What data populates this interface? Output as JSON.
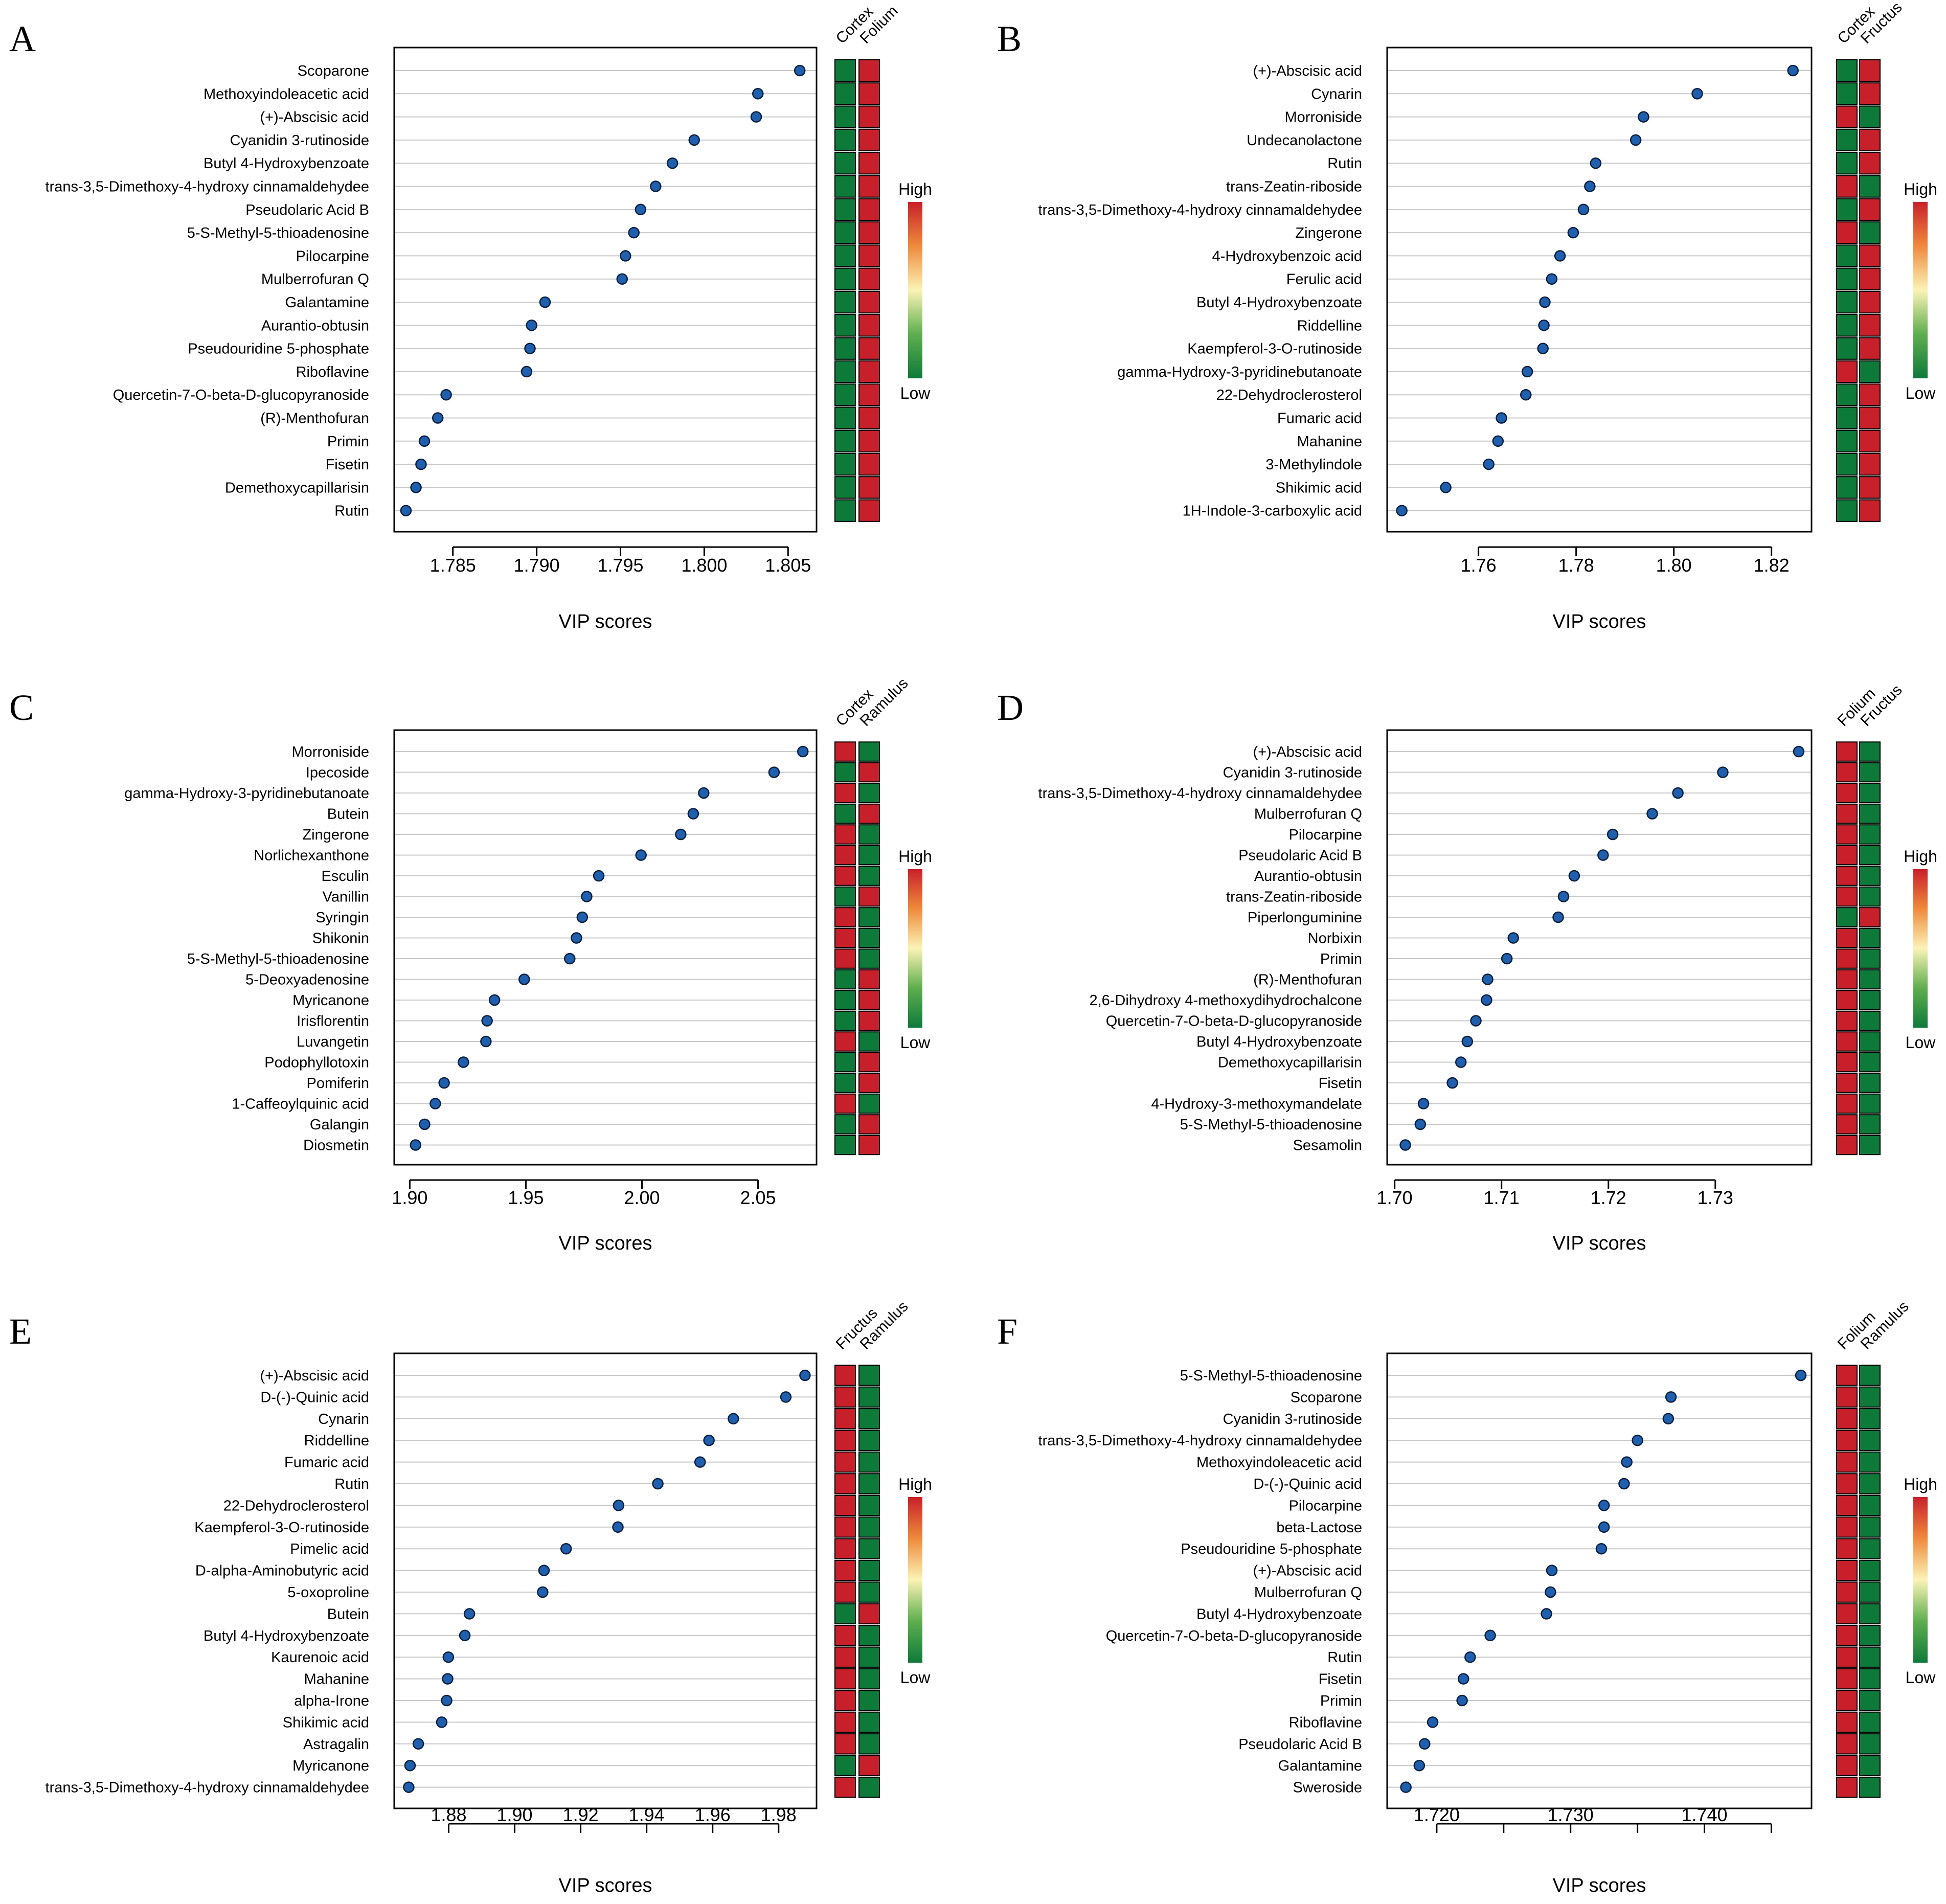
{
  "xlabel": "VIP scores",
  "colors": {
    "point_fill": "#1f5fae",
    "point_stroke": "#0b1f3d",
    "high": "#c8202a",
    "low": "#0e7a3a",
    "gridline": "#c8c8c8",
    "frame": "#000000"
  },
  "legend": {
    "high": "High",
    "low": "Low"
  },
  "chart_data": [
    {
      "letter": "A",
      "type": "scatter",
      "title": "A",
      "xlabel": "VIP scores",
      "xlim": [
        1.7815,
        1.8067
      ],
      "xticks": [
        1.785,
        1.79,
        1.795,
        1.8,
        1.805
      ],
      "tick_labels": [
        "1.785",
        "1.790",
        "1.795",
        "1.800",
        "1.805"
      ],
      "groups": [
        "Cortex",
        "Folium"
      ],
      "compounds": [
        "Scoparone",
        "Methoxyindoleacetic acid",
        "(+)-Abscisic acid",
        "Cyanidin 3-rutinoside",
        "Butyl 4-Hydroxybenzoate",
        "trans-3,5-Dimethoxy-4-hydroxy cinnamaldehydee",
        "Pseudolaric Acid B",
        "5-S-Methyl-5-thioadenosine",
        "Pilocarpine",
        "Mulberrofuran Q",
        "Galantamine",
        "Aurantio-obtusin",
        "Pseudouridine 5-phosphate",
        "Riboflavine",
        "Quercetin-7-O-beta-D-glucopyranoside",
        "(R)-Menthofuran",
        "Primin",
        "Fisetin",
        "Demethoxycapillarisin",
        "Rutin"
      ],
      "values": [
        1.8057,
        1.8032,
        1.8031,
        1.7994,
        1.7981,
        1.7971,
        1.7962,
        1.7958,
        1.7953,
        1.7951,
        1.7905,
        1.7897,
        1.7896,
        1.7894,
        1.7846,
        1.7841,
        1.7833,
        1.7831,
        1.7828,
        1.7822
      ],
      "heat": [
        [
          "low",
          "high"
        ],
        [
          "low",
          "high"
        ],
        [
          "low",
          "high"
        ],
        [
          "low",
          "high"
        ],
        [
          "low",
          "high"
        ],
        [
          "low",
          "high"
        ],
        [
          "low",
          "high"
        ],
        [
          "low",
          "high"
        ],
        [
          "low",
          "high"
        ],
        [
          "low",
          "high"
        ],
        [
          "low",
          "high"
        ],
        [
          "low",
          "high"
        ],
        [
          "low",
          "high"
        ],
        [
          "low",
          "high"
        ],
        [
          "low",
          "high"
        ],
        [
          "low",
          "high"
        ],
        [
          "low",
          "high"
        ],
        [
          "low",
          "high"
        ],
        [
          "low",
          "high"
        ],
        [
          "low",
          "high"
        ]
      ]
    },
    {
      "letter": "B",
      "type": "scatter",
      "title": "B",
      "xlabel": "VIP scores",
      "xlim": [
        1.7413,
        1.8282
      ],
      "xticks": [
        1.76,
        1.78,
        1.8,
        1.82
      ],
      "tick_labels": [
        "1.76",
        "1.78",
        "1.80",
        "1.82"
      ],
      "groups": [
        "Cortex",
        "Fructus"
      ],
      "compounds": [
        "(+)-Abscisic acid",
        "Cynarin",
        "Morroniside",
        "Undecanolactone",
        "Rutin",
        "trans-Zeatin-riboside",
        "trans-3,5-Dimethoxy-4-hydroxy cinnamaldehydee",
        "Zingerone",
        "4-Hydroxybenzoic acid",
        "Ferulic acid",
        "Butyl 4-Hydroxybenzoate",
        "Riddelline",
        "Kaempferol-3-O-rutinoside",
        "gamma-Hydroxy-3-pyridinebutanoate",
        "22-Dehydroclerosterol",
        "Fumaric acid",
        "Mahanine",
        "3-Methylindole",
        "Shikimic acid",
        "1H-Indole-3-carboxylic acid"
      ],
      "values": [
        1.8244,
        1.8048,
        1.7938,
        1.7922,
        1.784,
        1.7828,
        1.7815,
        1.7794,
        1.7767,
        1.775,
        1.7736,
        1.7734,
        1.7732,
        1.77,
        1.7697,
        1.7647,
        1.764,
        1.7621,
        1.7533,
        1.7443
      ],
      "heat": [
        [
          "low",
          "high"
        ],
        [
          "low",
          "high"
        ],
        [
          "high",
          "low"
        ],
        [
          "low",
          "high"
        ],
        [
          "low",
          "high"
        ],
        [
          "high",
          "low"
        ],
        [
          "low",
          "high"
        ],
        [
          "high",
          "low"
        ],
        [
          "low",
          "high"
        ],
        [
          "low",
          "high"
        ],
        [
          "low",
          "high"
        ],
        [
          "low",
          "high"
        ],
        [
          "low",
          "high"
        ],
        [
          "high",
          "low"
        ],
        [
          "low",
          "high"
        ],
        [
          "low",
          "high"
        ],
        [
          "low",
          "high"
        ],
        [
          "low",
          "high"
        ],
        [
          "low",
          "high"
        ],
        [
          "low",
          "high"
        ]
      ]
    },
    {
      "letter": "C",
      "type": "scatter",
      "title": "C",
      "xlabel": "VIP scores",
      "xlim": [
        1.8933,
        2.0752
      ],
      "xticks": [
        1.9,
        1.95,
        2.0,
        2.05
      ],
      "tick_labels": [
        "1.90",
        "1.95",
        "2.00",
        "2.05"
      ],
      "groups": [
        "Cortex",
        "Ramulus"
      ],
      "compounds": [
        "Morroniside",
        "Ipecoside",
        "gamma-Hydroxy-3-pyridinebutanoate",
        "Butein",
        "Zingerone",
        "Norlichexanthone",
        "Esculin",
        "Vanillin",
        "Syringin",
        "Shikonin",
        "5-S-Methyl-5-thioadenosine",
        "5-Deoxyadenosine",
        "Myricanone",
        "Irisflorentin",
        "Luvangetin",
        "Podophyllotoxin",
        "Pomiferin",
        "1-Caffeoylquinic acid",
        "Galangin",
        "Diosmetin"
      ],
      "values": [
        2.0693,
        2.0569,
        2.0266,
        2.0221,
        2.0167,
        1.9996,
        1.9814,
        1.9762,
        1.9743,
        1.9718,
        1.9689,
        1.9493,
        1.9365,
        1.9333,
        1.9328,
        1.9231,
        1.9148,
        1.911,
        1.9064,
        1.9025
      ],
      "heat": [
        [
          "high",
          "low"
        ],
        [
          "low",
          "high"
        ],
        [
          "high",
          "low"
        ],
        [
          "low",
          "high"
        ],
        [
          "high",
          "low"
        ],
        [
          "high",
          "low"
        ],
        [
          "high",
          "low"
        ],
        [
          "low",
          "high"
        ],
        [
          "high",
          "low"
        ],
        [
          "high",
          "low"
        ],
        [
          "high",
          "low"
        ],
        [
          "low",
          "high"
        ],
        [
          "low",
          "high"
        ],
        [
          "low",
          "high"
        ],
        [
          "high",
          "low"
        ],
        [
          "low",
          "high"
        ],
        [
          "low",
          "high"
        ],
        [
          "high",
          "low"
        ],
        [
          "low",
          "high"
        ],
        [
          "low",
          "high"
        ]
      ]
    },
    {
      "letter": "D",
      "type": "scatter",
      "title": "D",
      "xlabel": "VIP scores",
      "xlim": [
        1.6993,
        1.739
      ],
      "xticks": [
        1.7,
        1.71,
        1.72,
        1.73
      ],
      "tick_labels": [
        "1.70",
        "1.71",
        "1.72",
        "1.73"
      ],
      "groups": [
        "Folium",
        "Fructus"
      ],
      "compounds": [
        "(+)-Abscisic acid",
        "Cyanidin 3-rutinoside",
        "trans-3,5-Dimethoxy-4-hydroxy cinnamaldehydee",
        "Mulberrofuran Q",
        "Pilocarpine",
        "Pseudolaric Acid B",
        "Aurantio-obtusin",
        "trans-Zeatin-riboside",
        "Piperlonguminine",
        "Norbixin",
        "Primin",
        "(R)-Menthofuran",
        "2,6-Dihydroxy 4-methoxydihydrochalcone",
        "Quercetin-7-O-beta-D-glucopyranoside",
        "Butyl 4-Hydroxybenzoate",
        "Demethoxycapillarisin",
        "Fisetin",
        "4-Hydroxy-3-methoxymandelate",
        "5-S-Methyl-5-thioadenosine",
        "Sesamolin"
      ],
      "values": [
        1.7378,
        1.7307,
        1.7265,
        1.7241,
        1.7204,
        1.7195,
        1.7168,
        1.7158,
        1.7153,
        1.7111,
        1.7105,
        1.7087,
        1.7086,
        1.7076,
        1.7068,
        1.7062,
        1.7054,
        1.7027,
        1.7024,
        1.701
      ],
      "heat": [
        [
          "high",
          "low"
        ],
        [
          "high",
          "low"
        ],
        [
          "high",
          "low"
        ],
        [
          "high",
          "low"
        ],
        [
          "high",
          "low"
        ],
        [
          "high",
          "low"
        ],
        [
          "high",
          "low"
        ],
        [
          "high",
          "low"
        ],
        [
          "low",
          "high"
        ],
        [
          "high",
          "low"
        ],
        [
          "high",
          "low"
        ],
        [
          "high",
          "low"
        ],
        [
          "high",
          "low"
        ],
        [
          "high",
          "low"
        ],
        [
          "high",
          "low"
        ],
        [
          "high",
          "low"
        ],
        [
          "high",
          "low"
        ],
        [
          "high",
          "low"
        ],
        [
          "high",
          "low"
        ],
        [
          "high",
          "low"
        ]
      ]
    },
    {
      "letter": "E",
      "type": "scatter",
      "title": "E",
      "xlabel": "VIP scores",
      "xlim": [
        1.8635,
        1.9915
      ],
      "xticks": [
        1.88,
        1.9,
        1.92,
        1.94,
        1.96,
        1.98
      ],
      "tick_labels": [
        "1.88",
        "1.90",
        "1.92",
        "1.94",
        "1.96",
        "1.98"
      ],
      "groups": [
        "Fructus",
        "Ramulus"
      ],
      "compounds": [
        "(+)-Abscisic acid",
        "D-(-)-Quinic acid",
        "Cynarin",
        "Riddelline",
        "Fumaric acid",
        "Rutin",
        "22-Dehydroclerosterol",
        "Kaempferol-3-O-rutinoside",
        "Pimelic acid",
        "D-alpha-Aminobutyric acid",
        "5-oxoproline",
        "Butein",
        "Butyl 4-Hydroxybenzoate",
        "Kaurenoic acid",
        "Mahanine",
        "alpha-Irone",
        "Shikimic acid",
        "Astragalin",
        "Myricanone",
        "trans-3,5-Dimethoxy-4-hydroxy cinnamaldehydee"
      ],
      "values": [
        1.988,
        1.9822,
        1.9663,
        1.9589,
        1.9562,
        1.9434,
        1.9315,
        1.9313,
        1.9156,
        1.9089,
        1.9085,
        1.8863,
        1.8849,
        1.8799,
        1.8797,
        1.8794,
        1.8779,
        1.8708,
        1.8683,
        1.8679
      ],
      "heat": [
        [
          "high",
          "low"
        ],
        [
          "high",
          "low"
        ],
        [
          "high",
          "low"
        ],
        [
          "high",
          "low"
        ],
        [
          "high",
          "low"
        ],
        [
          "high",
          "low"
        ],
        [
          "high",
          "low"
        ],
        [
          "high",
          "low"
        ],
        [
          "high",
          "low"
        ],
        [
          "high",
          "low"
        ],
        [
          "high",
          "low"
        ],
        [
          "low",
          "high"
        ],
        [
          "high",
          "low"
        ],
        [
          "high",
          "low"
        ],
        [
          "high",
          "low"
        ],
        [
          "high",
          "low"
        ],
        [
          "high",
          "low"
        ],
        [
          "high",
          "low"
        ],
        [
          "low",
          "high"
        ],
        [
          "high",
          "low"
        ]
      ]
    },
    {
      "letter": "F",
      "type": "scatter",
      "title": "F",
      "xlabel": "VIP scores",
      "xlim": [
        1.7163,
        1.748
      ],
      "xticks": [
        1.72,
        1.725,
        1.73,
        1.735,
        1.74,
        1.745
      ],
      "tick_labels": [
        "1.720",
        "",
        "1.730",
        "",
        "1.740",
        ""
      ],
      "groups": [
        "Folium",
        "Ramulus"
      ],
      "compounds": [
        "5-S-Methyl-5-thioadenosine",
        "Scoparone",
        "Cyanidin 3-rutinoside",
        "trans-3,5-Dimethoxy-4-hydroxy cinnamaldehydee",
        "Methoxyindoleacetic acid",
        "D-(-)-Quinic acid",
        "Pilocarpine",
        "beta-Lactose",
        "Pseudouridine 5-phosphate",
        "(+)-Abscisic acid",
        "Mulberrofuran Q",
        "Butyl 4-Hydroxybenzoate",
        "Quercetin-7-O-beta-D-glucopyranoside",
        "Rutin",
        "Fisetin",
        "Primin",
        "Riboflavine",
        "Pseudolaric Acid B",
        "Galantamine",
        "Sweroside"
      ],
      "values": [
        1.7472,
        1.7375,
        1.7373,
        1.735,
        1.7342,
        1.734,
        1.7325,
        1.7325,
        1.7323,
        1.7286,
        1.7285,
        1.7282,
        1.724,
        1.7225,
        1.722,
        1.7219,
        1.7197,
        1.7191,
        1.7187,
        1.7177
      ],
      "heat": [
        [
          "high",
          "low"
        ],
        [
          "high",
          "low"
        ],
        [
          "high",
          "low"
        ],
        [
          "high",
          "low"
        ],
        [
          "high",
          "low"
        ],
        [
          "high",
          "low"
        ],
        [
          "high",
          "low"
        ],
        [
          "high",
          "low"
        ],
        [
          "high",
          "low"
        ],
        [
          "high",
          "low"
        ],
        [
          "high",
          "low"
        ],
        [
          "high",
          "low"
        ],
        [
          "high",
          "low"
        ],
        [
          "high",
          "low"
        ],
        [
          "high",
          "low"
        ],
        [
          "high",
          "low"
        ],
        [
          "high",
          "low"
        ],
        [
          "high",
          "low"
        ],
        [
          "high",
          "low"
        ],
        [
          "high",
          "low"
        ]
      ]
    }
  ]
}
